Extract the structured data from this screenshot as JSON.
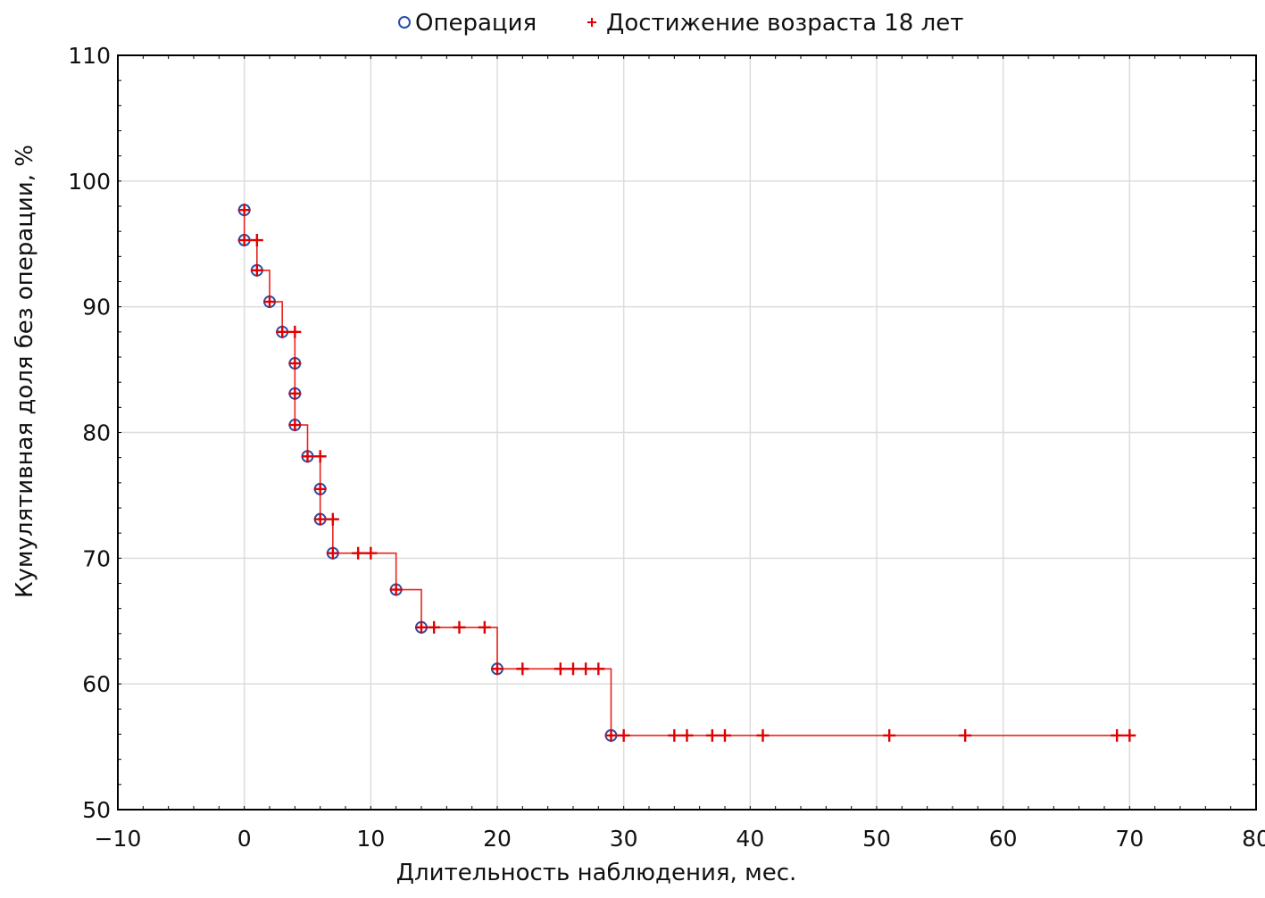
{
  "chart_data": {
    "type": "line",
    "subtype": "kaplan-meier-step",
    "title": "",
    "xlabel": "Длительность наблюдения, мес.",
    "ylabel": "Кумулятивная доля без операции, %",
    "xlim": [
      -10,
      80
    ],
    "ylim": [
      50,
      110
    ],
    "x_ticks": [
      -10,
      0,
      10,
      20,
      30,
      40,
      50,
      60,
      70,
      80
    ],
    "x_tick_labels": [
      "−10",
      "0",
      "10",
      "20",
      "30",
      "40",
      "50",
      "60",
      "70",
      "80"
    ],
    "y_ticks": [
      50,
      60,
      70,
      80,
      90,
      100,
      110
    ],
    "y_tick_labels": [
      "50",
      "60",
      "70",
      "80",
      "90",
      "100",
      "110"
    ],
    "grid": true,
    "legend_position": "top-center",
    "colors": {
      "line": "#e8231e",
      "censor": "#e00000",
      "event": "#2b4fa8",
      "grid": "#dddddd"
    },
    "legend": [
      {
        "name": "Операция",
        "marker": "circle",
        "color": "#2b4fa8"
      },
      {
        "name": "Достижение возраста 18 лет",
        "marker": "plus",
        "color": "#e00000"
      }
    ],
    "series": [
      {
        "name": "Операция",
        "marker": "circle",
        "points": [
          [
            0,
            97.7
          ],
          [
            0,
            95.3
          ],
          [
            1,
            92.9
          ],
          [
            2,
            90.4
          ],
          [
            3,
            88.0
          ],
          [
            4,
            85.5
          ],
          [
            4,
            83.1
          ],
          [
            4,
            80.6
          ],
          [
            5,
            78.1
          ],
          [
            6,
            75.5
          ],
          [
            6,
            73.1
          ],
          [
            7,
            70.4
          ],
          [
            12,
            67.5
          ],
          [
            14,
            64.5
          ],
          [
            20,
            61.2
          ],
          [
            29,
            55.9
          ]
        ]
      },
      {
        "name": "Достижение возраста 18 лет",
        "marker": "plus",
        "points": [
          [
            0,
            97.7
          ],
          [
            0,
            95.3
          ],
          [
            1,
            95.3
          ],
          [
            1,
            92.9
          ],
          [
            2,
            90.4
          ],
          [
            3,
            88.0
          ],
          [
            4,
            88.0
          ],
          [
            4,
            85.5
          ],
          [
            4,
            83.1
          ],
          [
            4,
            80.6
          ],
          [
            5,
            78.1
          ],
          [
            6,
            78.1
          ],
          [
            6,
            75.5
          ],
          [
            6,
            73.1
          ],
          [
            7,
            73.1
          ],
          [
            7,
            70.4
          ],
          [
            9,
            70.4
          ],
          [
            10,
            70.4
          ],
          [
            12,
            67.5
          ],
          [
            14,
            64.5
          ],
          [
            15,
            64.5
          ],
          [
            17,
            64.5
          ],
          [
            19,
            64.5
          ],
          [
            20,
            61.2
          ],
          [
            22,
            61.2
          ],
          [
            25,
            61.2
          ],
          [
            26,
            61.2
          ],
          [
            27,
            61.2
          ],
          [
            28,
            61.2
          ],
          [
            29,
            55.9
          ],
          [
            30,
            55.9
          ],
          [
            34,
            55.9
          ],
          [
            35,
            55.9
          ],
          [
            37,
            55.9
          ],
          [
            38,
            55.9
          ],
          [
            41,
            55.9
          ],
          [
            51,
            55.9
          ],
          [
            57,
            55.9
          ],
          [
            69,
            55.9
          ],
          [
            70,
            55.9
          ]
        ]
      }
    ],
    "survival_curve": [
      [
        0,
        97.7
      ],
      [
        0,
        95.3
      ],
      [
        1,
        92.9
      ],
      [
        2,
        90.4
      ],
      [
        3,
        88.0
      ],
      [
        4,
        80.6
      ],
      [
        5,
        78.1
      ],
      [
        6,
        73.1
      ],
      [
        7,
        70.4
      ],
      [
        12,
        67.5
      ],
      [
        14,
        64.5
      ],
      [
        20,
        61.2
      ],
      [
        29,
        55.9
      ],
      [
        70,
        55.9
      ]
    ]
  }
}
